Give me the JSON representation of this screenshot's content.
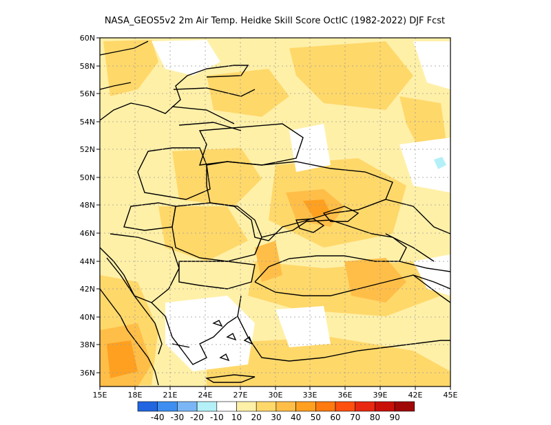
{
  "title": "NASA_GEOS5v2  2m Air Temp. Heidke Skill Score OctIC (1982-2022) DJF Fcst",
  "map": {
    "lon_range": [
      15,
      45
    ],
    "lat_range": [
      35,
      60
    ],
    "lon_ticks": [
      {
        "value": 15,
        "label": "15E"
      },
      {
        "value": 18,
        "label": "18E"
      },
      {
        "value": 21,
        "label": "21E"
      },
      {
        "value": 24,
        "label": "24E"
      },
      {
        "value": 27,
        "label": "27E"
      },
      {
        "value": 30,
        "label": "30E"
      },
      {
        "value": 33,
        "label": "33E"
      },
      {
        "value": 36,
        "label": "36E"
      },
      {
        "value": 39,
        "label": "39E"
      },
      {
        "value": 42,
        "label": "42E"
      },
      {
        "value": 45,
        "label": "45E"
      }
    ],
    "lat_ticks": [
      {
        "value": 60,
        "label": "60N"
      },
      {
        "value": 58,
        "label": "58N"
      },
      {
        "value": 56,
        "label": "56N"
      },
      {
        "value": 54,
        "label": "54N"
      },
      {
        "value": 52,
        "label": "52N"
      },
      {
        "value": 50,
        "label": "50N"
      },
      {
        "value": 48,
        "label": "48N"
      },
      {
        "value": 46,
        "label": "46N"
      },
      {
        "value": 44,
        "label": "44N"
      },
      {
        "value": 42,
        "label": "42N"
      },
      {
        "value": 40,
        "label": "40N"
      },
      {
        "value": 38,
        "label": "38N"
      },
      {
        "value": 36,
        "label": "36N"
      }
    ],
    "grid": true
  },
  "colorbar": {
    "colors": [
      "#2166e0",
      "#3d8ef0",
      "#7ab6f5",
      "#b4f0f8",
      "#ffffff",
      "#fff0a8",
      "#ffd86a",
      "#ffbe48",
      "#ffa020",
      "#ff7a10",
      "#ff5010",
      "#e82810",
      "#c81008",
      "#a00808"
    ],
    "labels": [
      "-40",
      "-30",
      "-20",
      "-10",
      "10",
      "20",
      "30",
      "40",
      "50",
      "60",
      "70",
      "80",
      "90"
    ]
  }
}
